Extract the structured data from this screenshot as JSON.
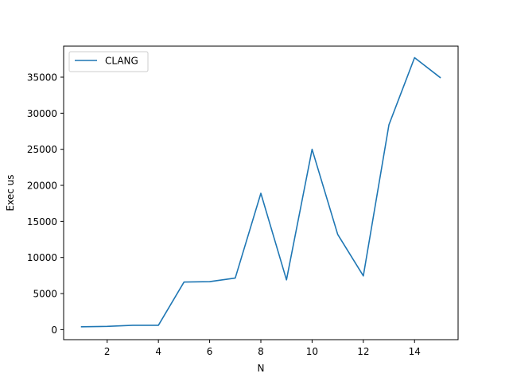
{
  "chart_data": {
    "type": "line",
    "title": "",
    "xlabel": "N",
    "ylabel": "Exec us",
    "xlim": [
      0.3,
      15.7
    ],
    "ylim": [
      -1390,
      39300
    ],
    "x_ticks": [
      2,
      4,
      6,
      8,
      10,
      12,
      14
    ],
    "y_ticks": [
      0,
      5000,
      10000,
      15000,
      20000,
      25000,
      30000,
      35000
    ],
    "grid": false,
    "legend_position": "top-left",
    "series": [
      {
        "name": "CLANG",
        "color": "#1f77b4",
        "x": [
          1,
          2,
          3,
          4,
          5,
          6,
          7,
          8,
          9,
          10,
          11,
          12,
          13,
          14,
          15
        ],
        "y": [
          400,
          450,
          600,
          600,
          6600,
          6650,
          7150,
          18900,
          6900,
          25000,
          13200,
          7450,
          28400,
          37700,
          34950
        ]
      }
    ]
  }
}
